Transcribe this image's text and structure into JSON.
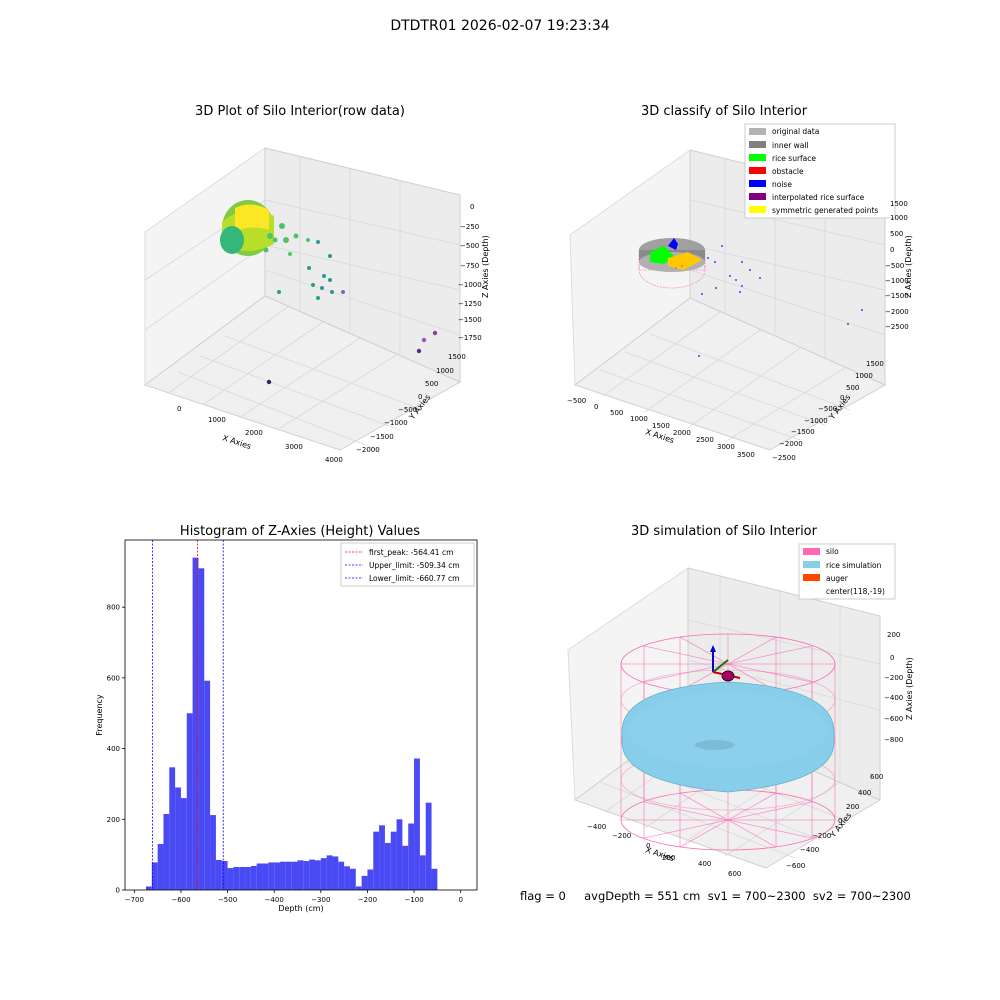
{
  "page_title": "DTDTR01 2026-02-07 19:23:34",
  "panels": {
    "raw": {
      "title": "3D Plot of Silo Interior(row data)",
      "xlabel": "X Axies",
      "ylabel": "Y Axies",
      "zlabel": "Z Axies (Depth)",
      "x_ticks": [
        "0",
        "1000",
        "2000",
        "3000",
        "4000"
      ],
      "y_ticks": [
        "1500",
        "1000",
        "500",
        "0",
        "−500",
        "−1000",
        "−1500",
        "−2000"
      ],
      "z_ticks": [
        "0",
        "−250",
        "−500",
        "−750",
        "−1000",
        "−1250",
        "−1500",
        "−1750"
      ]
    },
    "classify": {
      "title": "3D classify of Silo Interior",
      "xlabel": "X Axies",
      "ylabel": "Y Axies",
      "zlabel": "Z Axies (Depth)",
      "x_ticks": [
        "−500",
        "0",
        "500",
        "1000",
        "1500",
        "2000",
        "2500",
        "3000",
        "3500"
      ],
      "y_ticks": [
        "1500",
        "1000",
        "500",
        "0",
        "−500",
        "−1000",
        "−1500",
        "−2000",
        "−2500"
      ],
      "z_ticks": [
        "1500",
        "1000",
        "500",
        "0",
        "−500",
        "−1000",
        "−1500",
        "−2000",
        "−2500"
      ],
      "legend": [
        {
          "label": "original data",
          "color": "#b3b3b3"
        },
        {
          "label": "inner wall",
          "color": "#808080"
        },
        {
          "label": "rice surface",
          "color": "#00ff00"
        },
        {
          "label": "obstacle",
          "color": "#ff0000"
        },
        {
          "label": "noise",
          "color": "#0000ff"
        },
        {
          "label": "interpolated rice surface",
          "color": "#800080"
        },
        {
          "label": "symmetric generated points",
          "color": "#ffff00"
        }
      ]
    },
    "simulation": {
      "title": "3D simulation of Silo Interior",
      "xlabel": "X Axies",
      "ylabel": "Y Axies",
      "zlabel": "Z Axies (Depth)",
      "x_ticks": [
        "−400",
        "−200",
        "0",
        "200",
        "400",
        "600"
      ],
      "y_ticks": [
        "600",
        "400",
        "200",
        "0",
        "−200",
        "−400",
        "−600"
      ],
      "z_ticks": [
        "200",
        "0",
        "−200",
        "−400",
        "−600",
        "−800"
      ],
      "legend": [
        {
          "label": "silo",
          "color": "#ff69b4",
          "swatch": true
        },
        {
          "label": "rice simulation",
          "color": "#87ceeb",
          "swatch": true
        },
        {
          "label": "auger",
          "color": "#ff4500",
          "swatch": true
        },
        {
          "label": "center(118,-19)",
          "color": "#ffffff",
          "swatch": false
        }
      ]
    }
  },
  "chart_data": [
    {
      "type": "bar",
      "title": "Histogram of Z-Axies (Height) Values",
      "xlabel": "Depth (cm)",
      "ylabel": "Frequency",
      "xlim": [
        -720,
        35
      ],
      "ylim": [
        0,
        990
      ],
      "bin_start": -675,
      "bin_width": 12.5,
      "bar_color": "#4a4af5",
      "values": [
        10,
        78,
        130,
        215,
        347,
        290,
        260,
        500,
        940,
        910,
        592,
        212,
        85,
        82,
        62,
        65,
        65,
        65,
        68,
        75,
        75,
        78,
        78,
        80,
        80,
        80,
        84,
        82,
        86,
        84,
        90,
        98,
        95,
        80,
        67,
        60,
        10,
        40,
        58,
        165,
        183,
        133,
        165,
        200,
        125,
        188,
        372,
        98,
        247,
        60
      ],
      "x_ticks": [
        -700,
        -600,
        -500,
        -400,
        -300,
        -200,
        -100,
        0
      ],
      "y_ticks": [
        0,
        200,
        400,
        600,
        800
      ],
      "lines": [
        {
          "label": "first_peak: -564.41 cm",
          "x": -564.41,
          "color": "#ff0000"
        },
        {
          "label": "Upper_limit: -509.34 cm",
          "x": -509.34,
          "color": "#0000ff"
        },
        {
          "label": "Lower_limit: -660.77 cm",
          "x": -660.77,
          "color": "#0000ff"
        }
      ]
    }
  ],
  "status": {
    "text": "flag = 0     avgDepth = 551 cm  sv1 = 700~2300  sv2 = 700~2300"
  }
}
